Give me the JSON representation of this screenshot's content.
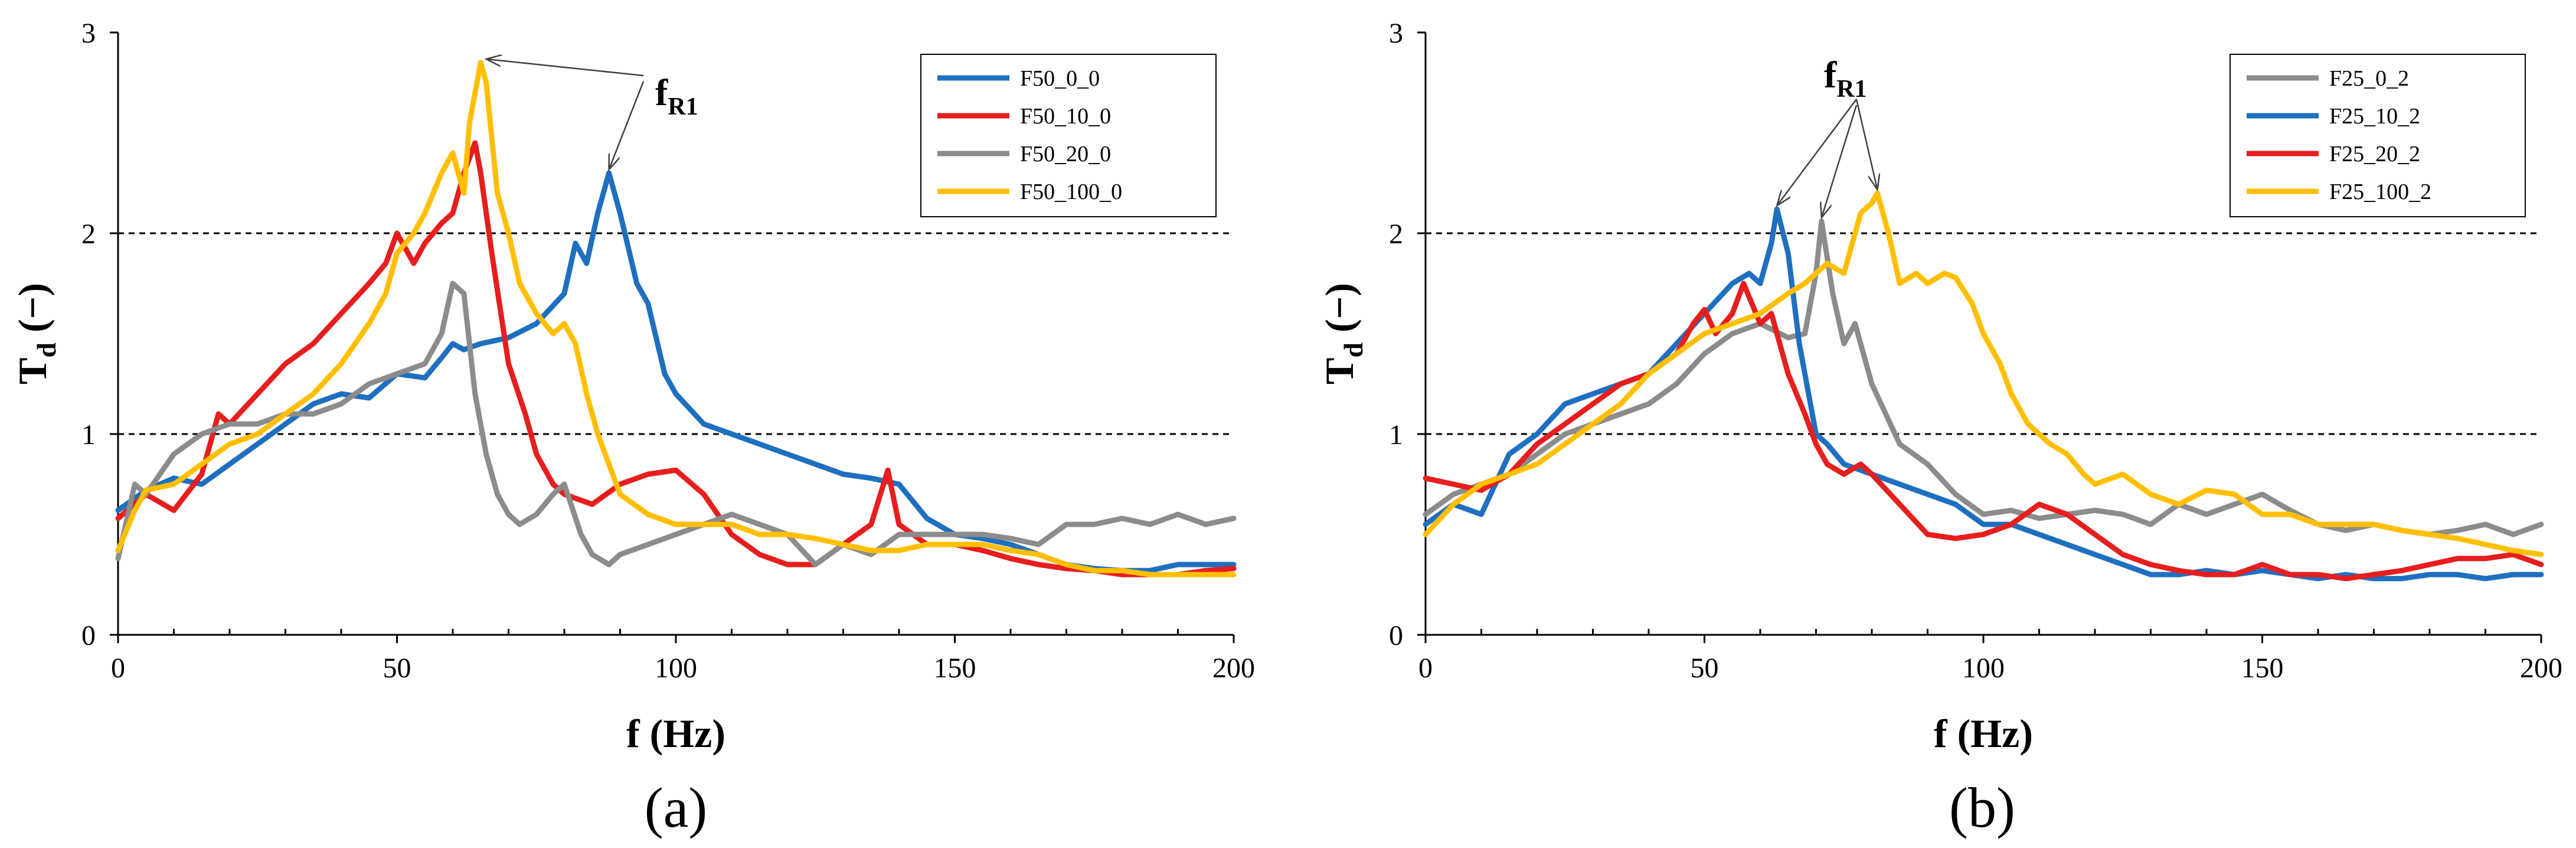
{
  "chart_data": [
    {
      "type": "line",
      "panel_label": "(a)",
      "xlabel": "f (Hz)",
      "ylabel": {
        "main": "T",
        "sub": "d",
        "rest": " (−)"
      },
      "xlim": [
        0,
        200
      ],
      "ylim": [
        0,
        3
      ],
      "xticks": [
        0,
        50,
        100,
        150,
        200
      ],
      "yticks": [
        0,
        1,
        2,
        3
      ],
      "reference_lines": [
        1,
        2
      ],
      "legend_position": "top-right",
      "annotation": {
        "main": "f",
        "sub": "R1",
        "targets": [
          [
            66,
            2.85
          ],
          [
            88,
            2.3
          ]
        ]
      },
      "series": [
        {
          "name": "F50_0_0",
          "color": "#1F6FBF",
          "x": [
            0,
            5,
            10,
            15,
            20,
            25,
            30,
            35,
            40,
            45,
            50,
            55,
            58,
            60,
            62,
            65,
            70,
            75,
            80,
            82,
            84,
            86,
            88,
            90,
            93,
            95,
            98,
            100,
            105,
            110,
            115,
            120,
            125,
            130,
            135,
            140,
            145,
            150,
            155,
            160,
            165,
            170,
            175,
            180,
            185,
            190,
            195,
            200
          ],
          "y": [
            0.62,
            0.72,
            0.78,
            0.75,
            0.85,
            0.95,
            1.05,
            1.15,
            1.2,
            1.18,
            1.3,
            1.28,
            1.38,
            1.45,
            1.42,
            1.45,
            1.48,
            1.55,
            1.7,
            1.95,
            1.85,
            2.1,
            2.3,
            2.1,
            1.75,
            1.65,
            1.3,
            1.2,
            1.05,
            1.0,
            0.95,
            0.9,
            0.85,
            0.8,
            0.78,
            0.75,
            0.58,
            0.5,
            0.48,
            0.45,
            0.4,
            0.35,
            0.33,
            0.32,
            0.32,
            0.35,
            0.35,
            0.35
          ]
        },
        {
          "name": "F50_10_0",
          "color": "#E61E1E",
          "x": [
            0,
            5,
            10,
            15,
            18,
            20,
            25,
            30,
            35,
            40,
            45,
            48,
            50,
            53,
            55,
            58,
            60,
            62,
            64,
            65,
            67,
            70,
            73,
            75,
            78,
            80,
            85,
            90,
            95,
            100,
            105,
            110,
            115,
            120,
            125,
            130,
            135,
            138,
            140,
            145,
            150,
            155,
            160,
            165,
            170,
            175,
            180,
            185,
            190,
            195,
            200
          ],
          "y": [
            0.58,
            0.7,
            0.62,
            0.8,
            1.1,
            1.05,
            1.2,
            1.35,
            1.45,
            1.6,
            1.75,
            1.85,
            2.0,
            1.85,
            1.95,
            2.05,
            2.1,
            2.3,
            2.45,
            2.3,
            1.9,
            1.35,
            1.1,
            0.9,
            0.75,
            0.7,
            0.65,
            0.75,
            0.8,
            0.82,
            0.7,
            0.5,
            0.4,
            0.35,
            0.35,
            0.45,
            0.55,
            0.82,
            0.55,
            0.45,
            0.45,
            0.42,
            0.38,
            0.35,
            0.33,
            0.32,
            0.3,
            0.3,
            0.3,
            0.32,
            0.33
          ]
        },
        {
          "name": "F50_20_0",
          "color": "#8C8C8C",
          "x": [
            0,
            3,
            5,
            8,
            10,
            15,
            20,
            25,
            30,
            35,
            40,
            45,
            50,
            55,
            58,
            60,
            62,
            64,
            66,
            68,
            70,
            72,
            75,
            78,
            80,
            83,
            85,
            88,
            90,
            95,
            100,
            105,
            110,
            115,
            120,
            125,
            130,
            135,
            140,
            145,
            150,
            155,
            160,
            165,
            170,
            175,
            180,
            185,
            190,
            195,
            200
          ],
          "y": [
            0.38,
            0.75,
            0.7,
            0.82,
            0.9,
            1.0,
            1.05,
            1.05,
            1.1,
            1.1,
            1.15,
            1.25,
            1.3,
            1.35,
            1.5,
            1.75,
            1.7,
            1.2,
            0.9,
            0.7,
            0.6,
            0.55,
            0.6,
            0.7,
            0.75,
            0.5,
            0.4,
            0.35,
            0.4,
            0.45,
            0.5,
            0.55,
            0.6,
            0.55,
            0.5,
            0.35,
            0.45,
            0.4,
            0.5,
            0.5,
            0.5,
            0.5,
            0.48,
            0.45,
            0.55,
            0.55,
            0.58,
            0.55,
            0.6,
            0.55,
            0.58
          ]
        },
        {
          "name": "F50_100_0",
          "color": "#FFBF00",
          "x": [
            0,
            3,
            5,
            10,
            15,
            20,
            25,
            30,
            35,
            40,
            45,
            48,
            50,
            53,
            55,
            58,
            60,
            62,
            63,
            65,
            66,
            68,
            70,
            72,
            75,
            78,
            80,
            82,
            84,
            86,
            88,
            90,
            95,
            100,
            105,
            110,
            115,
            120,
            125,
            130,
            135,
            140,
            145,
            150,
            155,
            160,
            165,
            170,
            175,
            180,
            185,
            190,
            195,
            200
          ],
          "y": [
            0.42,
            0.62,
            0.72,
            0.75,
            0.85,
            0.95,
            1.0,
            1.1,
            1.2,
            1.35,
            1.55,
            1.7,
            1.9,
            2.0,
            2.1,
            2.3,
            2.4,
            2.2,
            2.55,
            2.85,
            2.75,
            2.2,
            2.0,
            1.75,
            1.6,
            1.5,
            1.55,
            1.45,
            1.2,
            1.0,
            0.85,
            0.7,
            0.6,
            0.55,
            0.55,
            0.55,
            0.5,
            0.5,
            0.48,
            0.45,
            0.42,
            0.42,
            0.45,
            0.45,
            0.45,
            0.42,
            0.4,
            0.35,
            0.32,
            0.32,
            0.3,
            0.3,
            0.3,
            0.3
          ]
        }
      ]
    },
    {
      "type": "line",
      "panel_label": "(b)",
      "xlabel": "f (Hz)",
      "ylabel": {
        "main": "T",
        "sub": "d",
        "rest": " (−)"
      },
      "xlim": [
        0,
        200
      ],
      "ylim": [
        0,
        3
      ],
      "xticks": [
        0,
        50,
        100,
        150,
        200
      ],
      "yticks": [
        0,
        1,
        2,
        3
      ],
      "reference_lines": [
        1,
        2
      ],
      "legend_position": "top-right",
      "annotation": {
        "main": "f",
        "sub": "R1",
        "targets": [
          [
            63,
            2.12
          ],
          [
            71,
            2.06
          ],
          [
            81,
            2.2
          ]
        ]
      },
      "series": [
        {
          "name": "F25_0_2",
          "color": "#8C8C8C",
          "x": [
            0,
            5,
            10,
            15,
            20,
            25,
            30,
            35,
            40,
            45,
            50,
            55,
            60,
            65,
            68,
            70,
            71,
            73,
            75,
            77,
            80,
            85,
            90,
            95,
            100,
            105,
            110,
            115,
            120,
            125,
            130,
            135,
            140,
            145,
            150,
            155,
            160,
            165,
            170,
            175,
            180,
            185,
            190,
            195,
            200
          ],
          "y": [
            0.6,
            0.7,
            0.75,
            0.8,
            0.9,
            1.0,
            1.05,
            1.1,
            1.15,
            1.25,
            1.4,
            1.5,
            1.55,
            1.48,
            1.5,
            1.8,
            2.06,
            1.7,
            1.45,
            1.55,
            1.25,
            0.95,
            0.85,
            0.7,
            0.6,
            0.62,
            0.58,
            0.6,
            0.62,
            0.6,
            0.55,
            0.65,
            0.6,
            0.65,
            0.7,
            0.62,
            0.55,
            0.52,
            0.55,
            0.52,
            0.5,
            0.52,
            0.55,
            0.5,
            0.55
          ]
        },
        {
          "name": "F25_10_2",
          "color": "#1F6FBF",
          "x": [
            0,
            5,
            10,
            15,
            20,
            25,
            30,
            35,
            40,
            45,
            50,
            55,
            58,
            60,
            62,
            63,
            65,
            67,
            70,
            72,
            75,
            80,
            85,
            90,
            95,
            100,
            105,
            110,
            115,
            120,
            125,
            130,
            135,
            140,
            145,
            150,
            155,
            160,
            165,
            170,
            175,
            180,
            185,
            190,
            195,
            200
          ],
          "y": [
            0.55,
            0.65,
            0.6,
            0.9,
            1.0,
            1.15,
            1.2,
            1.25,
            1.3,
            1.45,
            1.6,
            1.75,
            1.8,
            1.75,
            1.95,
            2.12,
            1.9,
            1.45,
            1.0,
            0.95,
            0.85,
            0.8,
            0.75,
            0.7,
            0.65,
            0.55,
            0.55,
            0.5,
            0.45,
            0.4,
            0.35,
            0.3,
            0.3,
            0.32,
            0.3,
            0.32,
            0.3,
            0.28,
            0.3,
            0.28,
            0.28,
            0.3,
            0.3,
            0.28,
            0.3,
            0.3
          ]
        },
        {
          "name": "F25_20_2",
          "color": "#E61E1E",
          "x": [
            0,
            5,
            10,
            15,
            20,
            25,
            30,
            35,
            40,
            45,
            48,
            50,
            52,
            55,
            57,
            60,
            62,
            65,
            68,
            70,
            72,
            75,
            78,
            80,
            85,
            90,
            95,
            100,
            105,
            110,
            115,
            120,
            125,
            130,
            135,
            140,
            145,
            150,
            155,
            160,
            165,
            170,
            175,
            180,
            185,
            190,
            195,
            200
          ],
          "y": [
            0.78,
            0.75,
            0.72,
            0.8,
            0.95,
            1.05,
            1.15,
            1.25,
            1.3,
            1.4,
            1.55,
            1.62,
            1.5,
            1.6,
            1.75,
            1.55,
            1.6,
            1.3,
            1.1,
            0.95,
            0.85,
            0.8,
            0.85,
            0.8,
            0.65,
            0.5,
            0.48,
            0.5,
            0.55,
            0.65,
            0.6,
            0.5,
            0.4,
            0.35,
            0.32,
            0.3,
            0.3,
            0.35,
            0.3,
            0.3,
            0.28,
            0.3,
            0.32,
            0.35,
            0.38,
            0.38,
            0.4,
            0.35
          ]
        },
        {
          "name": "F25_100_2",
          "color": "#FFBF00",
          "x": [
            0,
            5,
            10,
            15,
            20,
            25,
            30,
            35,
            40,
            45,
            50,
            55,
            60,
            65,
            68,
            70,
            72,
            75,
            78,
            80,
            81,
            83,
            85,
            88,
            90,
            93,
            95,
            98,
            100,
            103,
            105,
            108,
            110,
            112,
            115,
            118,
            120,
            123,
            125,
            130,
            135,
            140,
            145,
            150,
            155,
            160,
            165,
            170,
            175,
            180,
            185,
            190,
            195,
            200
          ],
          "y": [
            0.5,
            0.65,
            0.75,
            0.8,
            0.85,
            0.95,
            1.05,
            1.15,
            1.3,
            1.4,
            1.5,
            1.55,
            1.6,
            1.7,
            1.75,
            1.8,
            1.85,
            1.8,
            2.1,
            2.15,
            2.2,
            2.0,
            1.75,
            1.8,
            1.75,
            1.8,
            1.78,
            1.65,
            1.5,
            1.35,
            1.2,
            1.05,
            1.0,
            0.95,
            0.9,
            0.8,
            0.75,
            0.78,
            0.8,
            0.7,
            0.65,
            0.72,
            0.7,
            0.6,
            0.6,
            0.55,
            0.55,
            0.55,
            0.52,
            0.5,
            0.48,
            0.45,
            0.42,
            0.4
          ]
        }
      ]
    }
  ]
}
